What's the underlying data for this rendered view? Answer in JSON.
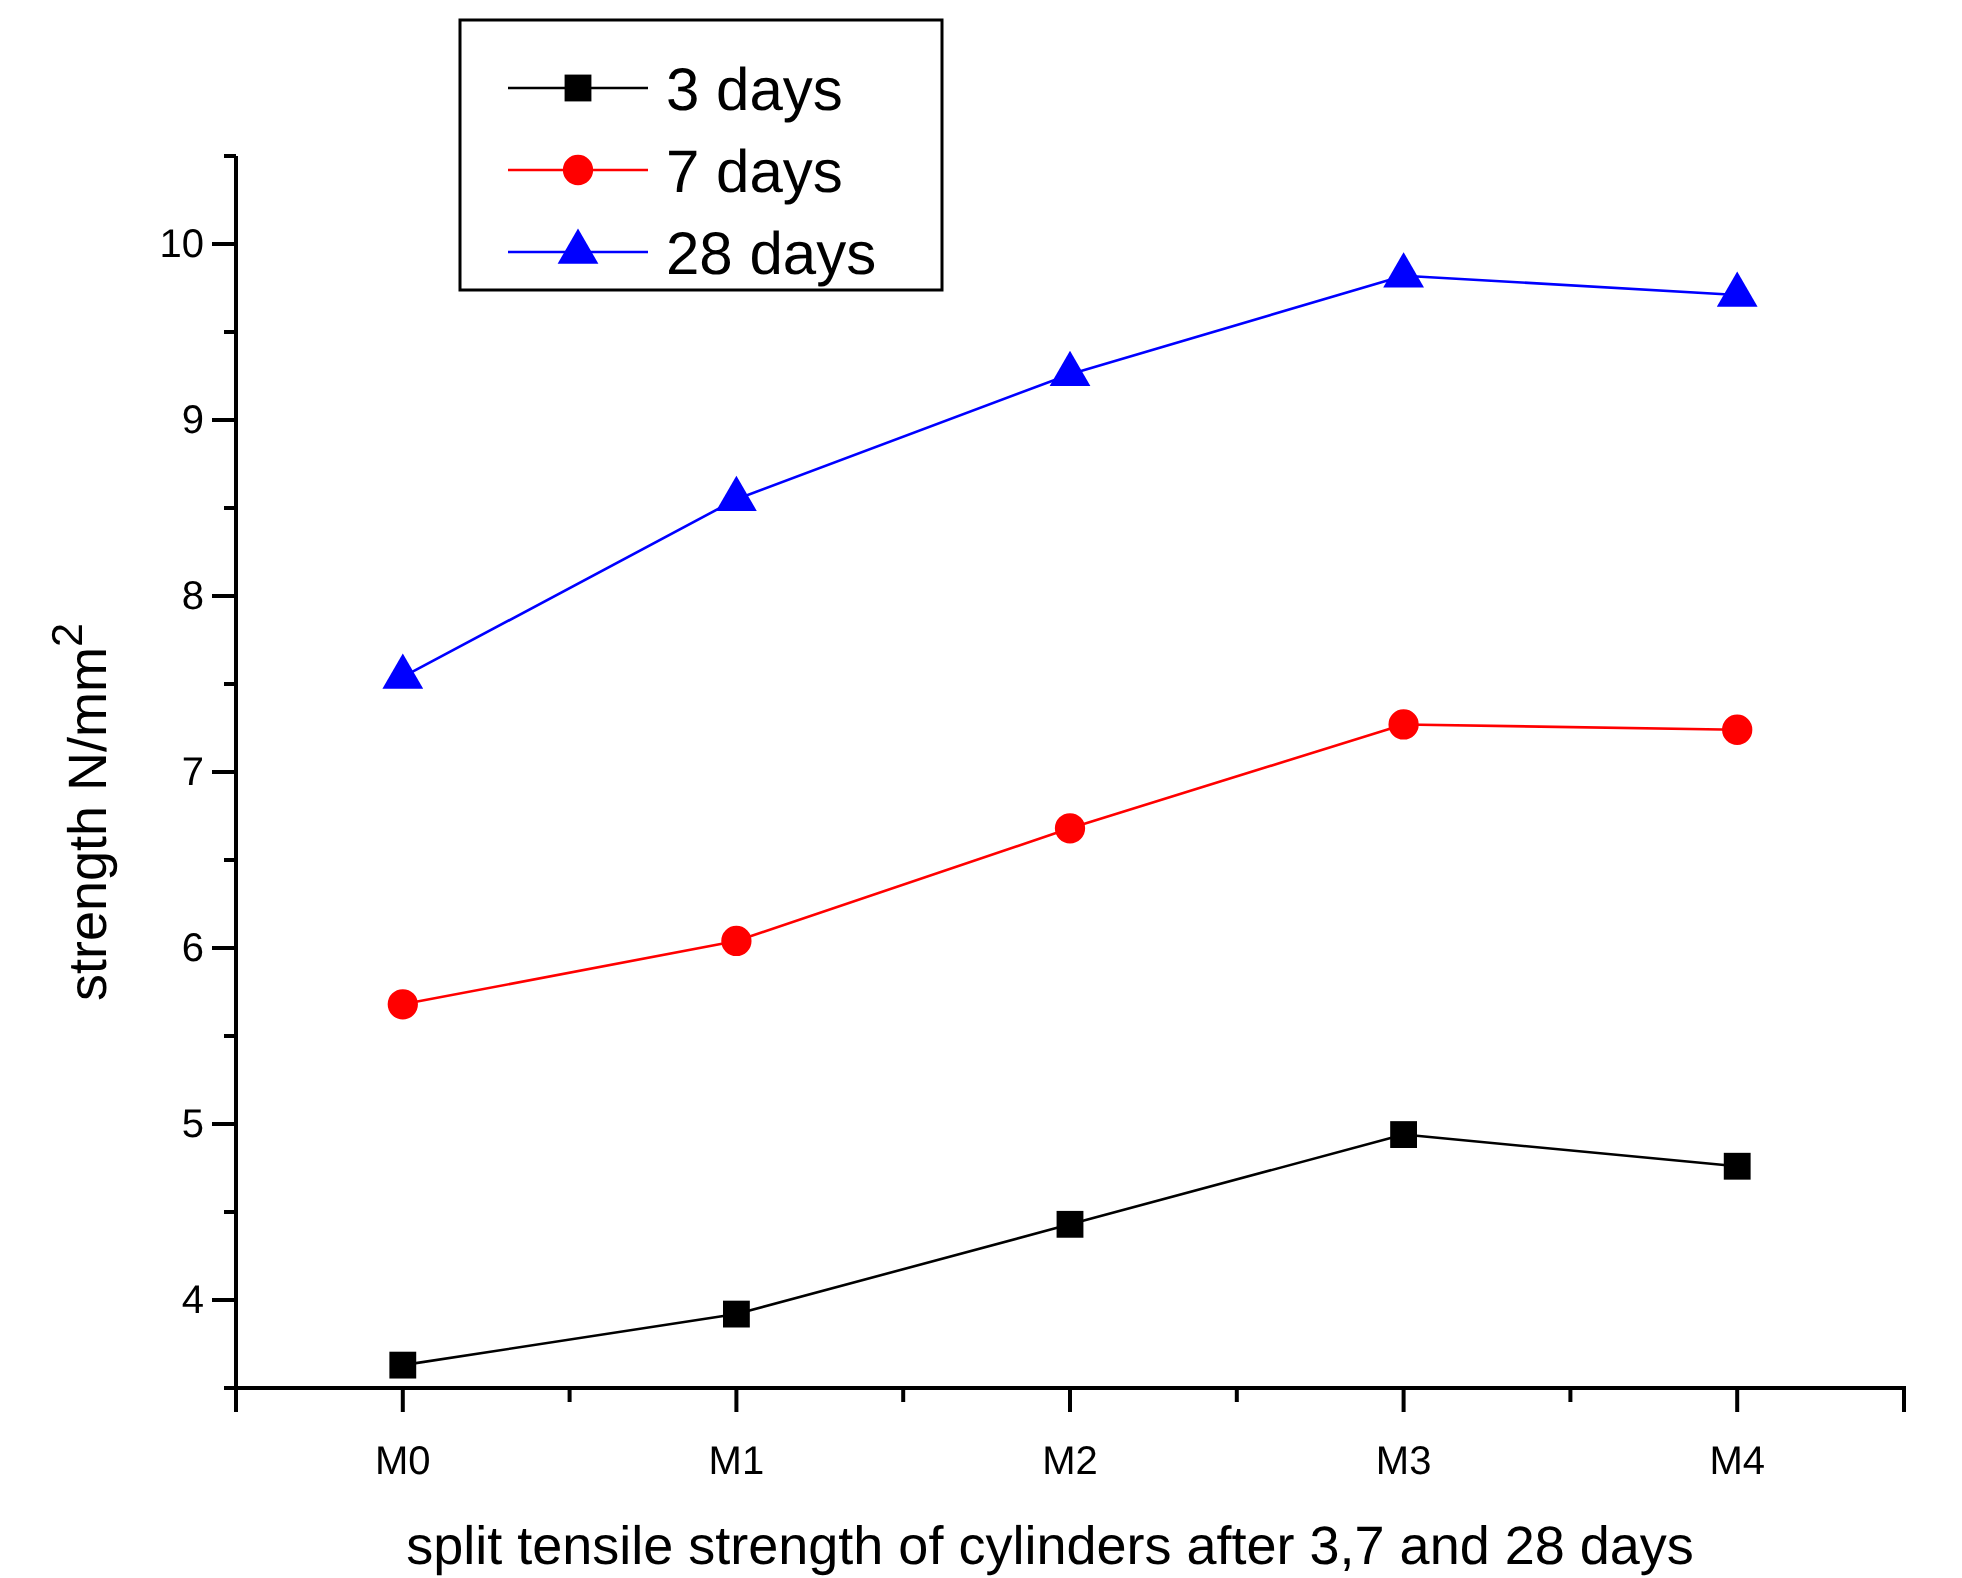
{
  "chart_data": {
    "type": "line",
    "xlabel": "split tensile strength of cylinders after 3,7 and 28 days",
    "ylabel": "strength N/mm$^{2}$",
    "categories": [
      "M0",
      "M1",
      "M2",
      "M3",
      "M4"
    ],
    "series": [
      {
        "name": "3 days",
        "color": "#000000",
        "marker": "square",
        "values": [
          3.63,
          3.92,
          4.43,
          4.94,
          4.76
        ]
      },
      {
        "name": "7 days",
        "color": "#ff0000",
        "marker": "circle",
        "values": [
          5.68,
          6.04,
          6.68,
          7.27,
          7.24
        ]
      },
      {
        "name": "28 days",
        "color": "#0000ff",
        "marker": "triangle",
        "values": [
          7.54,
          8.55,
          9.26,
          9.82,
          9.71
        ]
      }
    ],
    "ylim": [
      3.5,
      10.5
    ],
    "yticks": [
      {
        "value": 3.5,
        "label": null
      },
      4,
      {
        "value": 4.5,
        "label": null
      },
      5,
      {
        "value": 5.5,
        "label": null
      },
      6,
      {
        "value": 6.5,
        "label": null
      },
      7,
      {
        "value": 7.5,
        "label": null
      },
      8,
      {
        "value": 8.5,
        "label": null
      },
      9,
      {
        "value": 9.5,
        "label": null
      },
      10,
      {
        "value": 10.5,
        "label": null
      }
    ],
    "legend": "top",
    "grid": false,
    "line_style": "solid"
  }
}
